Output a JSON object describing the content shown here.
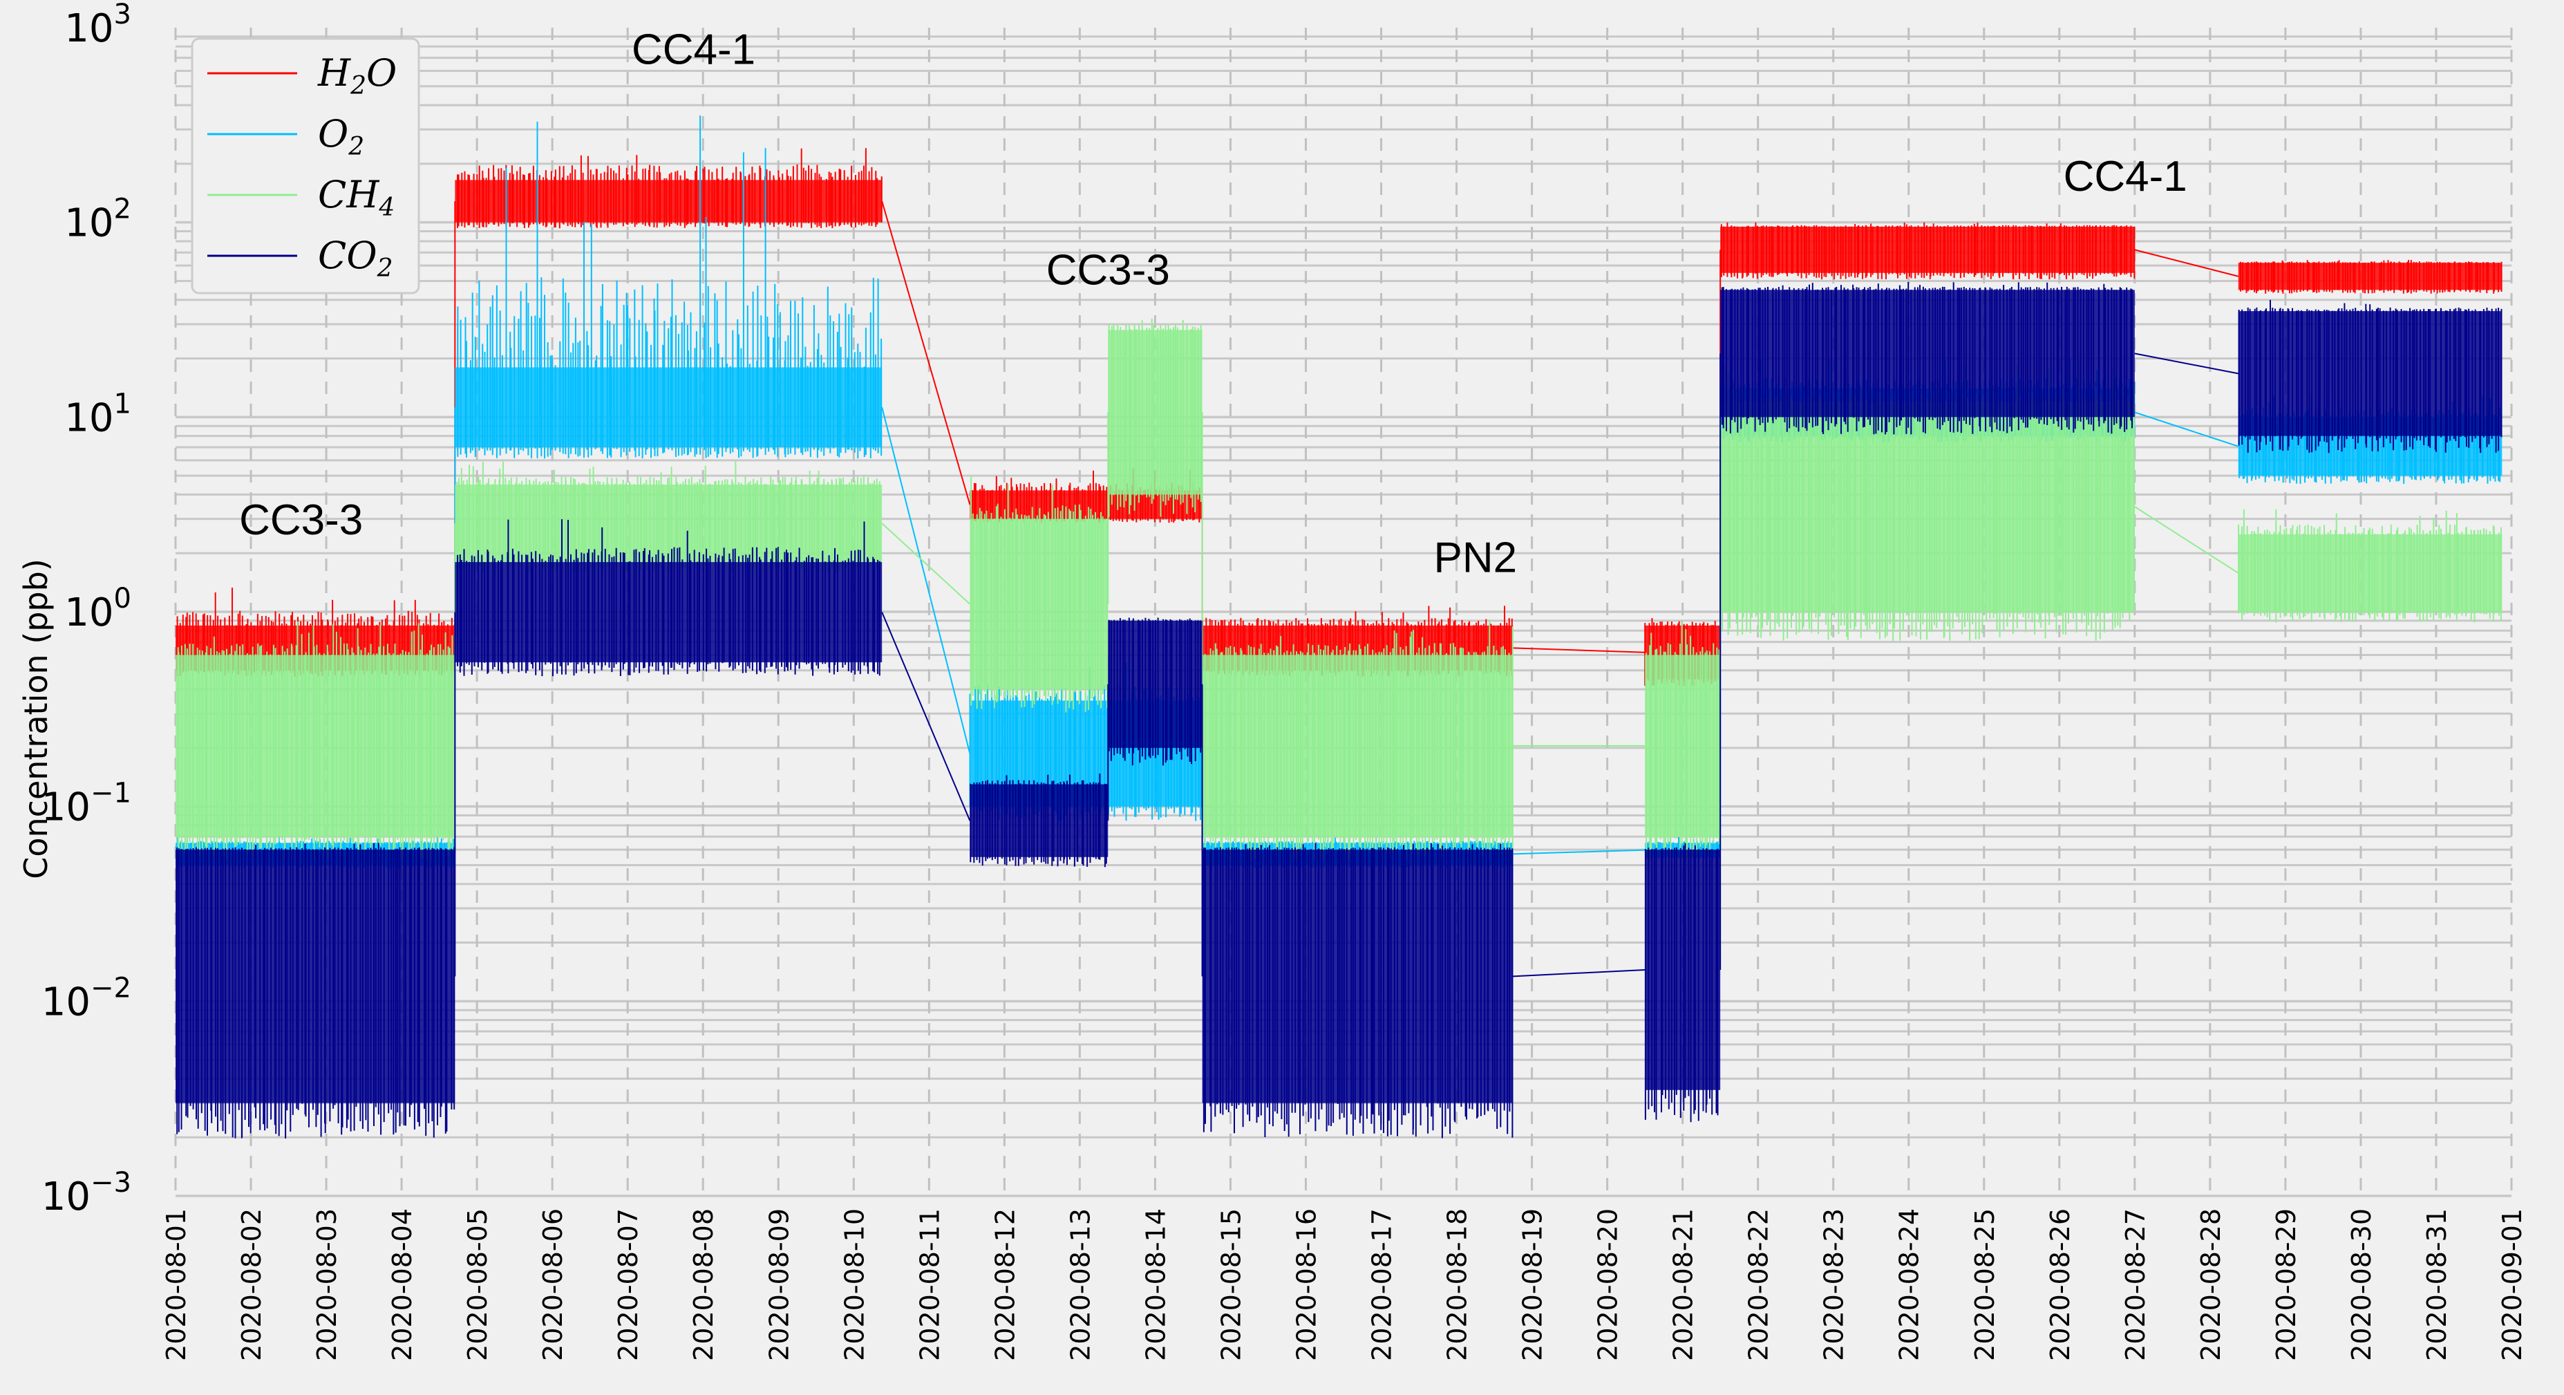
{
  "chart_data": {
    "type": "line",
    "title": "",
    "xlabel": "",
    "ylabel": "Concentration (ppb)",
    "yscale": "log",
    "ylim": [
      0.001,
      1000
    ],
    "xlim": [
      "2020-08-01",
      "2020-09-01"
    ],
    "grid": true,
    "legend_position": "top-left",
    "y_ticks": [
      {
        "value": 0.001,
        "base": "10",
        "exp": "−3"
      },
      {
        "value": 0.01,
        "base": "10",
        "exp": "−2"
      },
      {
        "value": 0.1,
        "base": "10",
        "exp": "−1"
      },
      {
        "value": 1,
        "base": "10",
        "exp": "0"
      },
      {
        "value": 10,
        "base": "10",
        "exp": "1"
      },
      {
        "value": 100,
        "base": "10",
        "exp": "2"
      },
      {
        "value": 1000,
        "base": "10",
        "exp": "3"
      }
    ],
    "x_ticks": [
      "2020-08-01",
      "2020-08-02",
      "2020-08-03",
      "2020-08-04",
      "2020-08-05",
      "2020-08-06",
      "2020-08-07",
      "2020-08-08",
      "2020-08-09",
      "2020-08-10",
      "2020-08-11",
      "2020-08-12",
      "2020-08-13",
      "2020-08-14",
      "2020-08-15",
      "2020-08-16",
      "2020-08-17",
      "2020-08-18",
      "2020-08-19",
      "2020-08-20",
      "2020-08-21",
      "2020-08-22",
      "2020-08-23",
      "2020-08-24",
      "2020-08-25",
      "2020-08-26",
      "2020-08-27",
      "2020-08-28",
      "2020-08-29",
      "2020-08-30",
      "2020-08-31",
      "2020-09-01"
    ],
    "series": [
      {
        "name": "H2O",
        "label_base": "H",
        "label_sub": "2",
        "label_tail": "O",
        "color": "#ff0000",
        "segments": [
          {
            "start": "2020-08-01T00:00",
            "end": "2020-08-04T17:00",
            "band_low": 0.5,
            "band_high": 0.85,
            "spike_high": 1.4
          },
          {
            "start": "2020-08-04T17:00",
            "end": "2020-08-10T09:00",
            "band_low": 100,
            "band_high": 165,
            "spike_high": 280
          },
          {
            "start": "2020-08-11T13:00",
            "end": "2020-08-14T15:00",
            "band_low": 3.0,
            "band_high": 4.2,
            "spike_high": 5.5
          },
          {
            "start": "2020-08-14T15:00",
            "end": "2020-08-18T18:00",
            "band_low": 0.5,
            "band_high": 0.85,
            "spike_high": 1.1
          },
          {
            "start": "2020-08-20T12:00",
            "end": "2020-08-21T12:00",
            "band_low": 0.45,
            "band_high": 0.85,
            "spike_high": 1.0
          },
          {
            "start": "2020-08-21T12:00",
            "end": "2020-08-27T00:00",
            "band_low": 55,
            "band_high": 95,
            "spike_high": 100
          },
          {
            "start": "2020-08-28T09:00",
            "end": "2020-08-31T21:00",
            "band_low": 45,
            "band_high": 62,
            "spike_high": 65
          }
        ]
      },
      {
        "name": "O2",
        "label_base": "O",
        "label_sub": "2",
        "label_tail": "",
        "color": "#00bfff",
        "segments": [
          {
            "start": "2020-08-01T00:00",
            "end": "2020-08-04T17:00",
            "band_low": 0.05,
            "band_high": 0.065,
            "spike_high": 0.07
          },
          {
            "start": "2020-08-04T17:00",
            "end": "2020-08-10T09:00",
            "band_low": 7,
            "band_high": 18,
            "spike_high": 380
          },
          {
            "start": "2020-08-11T13:00",
            "end": "2020-08-14T15:00",
            "band_low": 0.1,
            "band_high": 0.35,
            "spike_high": 0.6
          },
          {
            "start": "2020-08-14T15:00",
            "end": "2020-08-18T18:00",
            "band_low": 0.05,
            "band_high": 0.065,
            "spike_high": 0.07
          },
          {
            "start": "2020-08-20T12:00",
            "end": "2020-08-21T12:00",
            "band_low": 0.055,
            "band_high": 0.065,
            "spike_high": 0.07
          },
          {
            "start": "2020-08-21T12:00",
            "end": "2020-08-27T00:00",
            "band_low": 8,
            "band_high": 14,
            "spike_high": 20
          },
          {
            "start": "2020-08-28T09:00",
            "end": "2020-08-31T21:00",
            "band_low": 5,
            "band_high": 10,
            "spike_high": 14
          }
        ]
      },
      {
        "name": "CH4",
        "label_base": "CH",
        "label_sub": "4",
        "label_tail": "",
        "color": "#90ee90",
        "segments": [
          {
            "start": "2020-08-01T00:00",
            "end": "2020-08-04T17:00",
            "band_low": 0.07,
            "band_high": 0.6,
            "spike_high": 0.9
          },
          {
            "start": "2020-08-04T17:00",
            "end": "2020-08-10T09:00",
            "band_low": 1.8,
            "band_high": 4.5,
            "spike_high": 6
          },
          {
            "start": "2020-08-11T13:00",
            "end": "2020-08-13T09:00",
            "band_low": 0.4,
            "band_high": 3.0,
            "spike_high": 5
          },
          {
            "start": "2020-08-13T09:00",
            "end": "2020-08-14T15:00",
            "band_low": 4,
            "band_high": 28,
            "spike_high": 35
          },
          {
            "start": "2020-08-14T15:00",
            "end": "2020-08-18T18:00",
            "band_low": 0.07,
            "band_high": 0.6,
            "spike_high": 0.9
          },
          {
            "start": "2020-08-20T12:00",
            "end": "2020-08-21T12:00",
            "band_low": 0.07,
            "band_high": 0.6,
            "spike_high": 0.9
          },
          {
            "start": "2020-08-21T12:00",
            "end": "2020-08-27T00:00",
            "band_low": 1.0,
            "band_high": 12,
            "spike_high": 20
          },
          {
            "start": "2020-08-28T09:00",
            "end": "2020-08-31T21:00",
            "band_low": 1.0,
            "band_high": 2.5,
            "spike_high": 3.5
          }
        ]
      },
      {
        "name": "CO2",
        "label_base": "CO",
        "label_sub": "2",
        "label_tail": "",
        "color": "#00008b",
        "segments": [
          {
            "start": "2020-08-01T00:00",
            "end": "2020-08-04T17:00",
            "band_low": 0.003,
            "band_high": 0.06,
            "spike_high": 0.065
          },
          {
            "start": "2020-08-04T17:00",
            "end": "2020-08-10T09:00",
            "band_low": 0.55,
            "band_high": 1.8,
            "spike_high": 3.0
          },
          {
            "start": "2020-08-11T13:00",
            "end": "2020-08-13T09:00",
            "band_low": 0.055,
            "band_high": 0.13,
            "spike_high": 0.15
          },
          {
            "start": "2020-08-13T09:00",
            "end": "2020-08-14T15:00",
            "band_low": 0.2,
            "band_high": 0.9,
            "spike_high": 1.0
          },
          {
            "start": "2020-08-14T15:00",
            "end": "2020-08-18T18:00",
            "band_low": 0.003,
            "band_high": 0.06,
            "spike_high": 0.065
          },
          {
            "start": "2020-08-20T12:00",
            "end": "2020-08-21T12:00",
            "band_low": 0.0035,
            "band_high": 0.06,
            "spike_high": 0.065
          },
          {
            "start": "2020-08-21T12:00",
            "end": "2020-08-27T00:00",
            "band_low": 10,
            "band_high": 45,
            "spike_high": 50
          },
          {
            "start": "2020-08-28T09:00",
            "end": "2020-08-31T21:00",
            "band_low": 8,
            "band_high": 35,
            "spike_high": 40
          }
        ]
      }
    ],
    "annotations": [
      {
        "text": "CC3-3",
        "x": "2020-08-02T16:00",
        "y": 2.5
      },
      {
        "text": "CC4-1",
        "x": "2020-08-07T21:00",
        "y": 650
      },
      {
        "text": "CC3-3",
        "x": "2020-08-13T09:00",
        "y": 48
      },
      {
        "text": "PN2",
        "x": "2020-08-18T06:00",
        "y": 1.6
      },
      {
        "text": "CC4-1",
        "x": "2020-08-26T21:00",
        "y": 145
      }
    ]
  }
}
